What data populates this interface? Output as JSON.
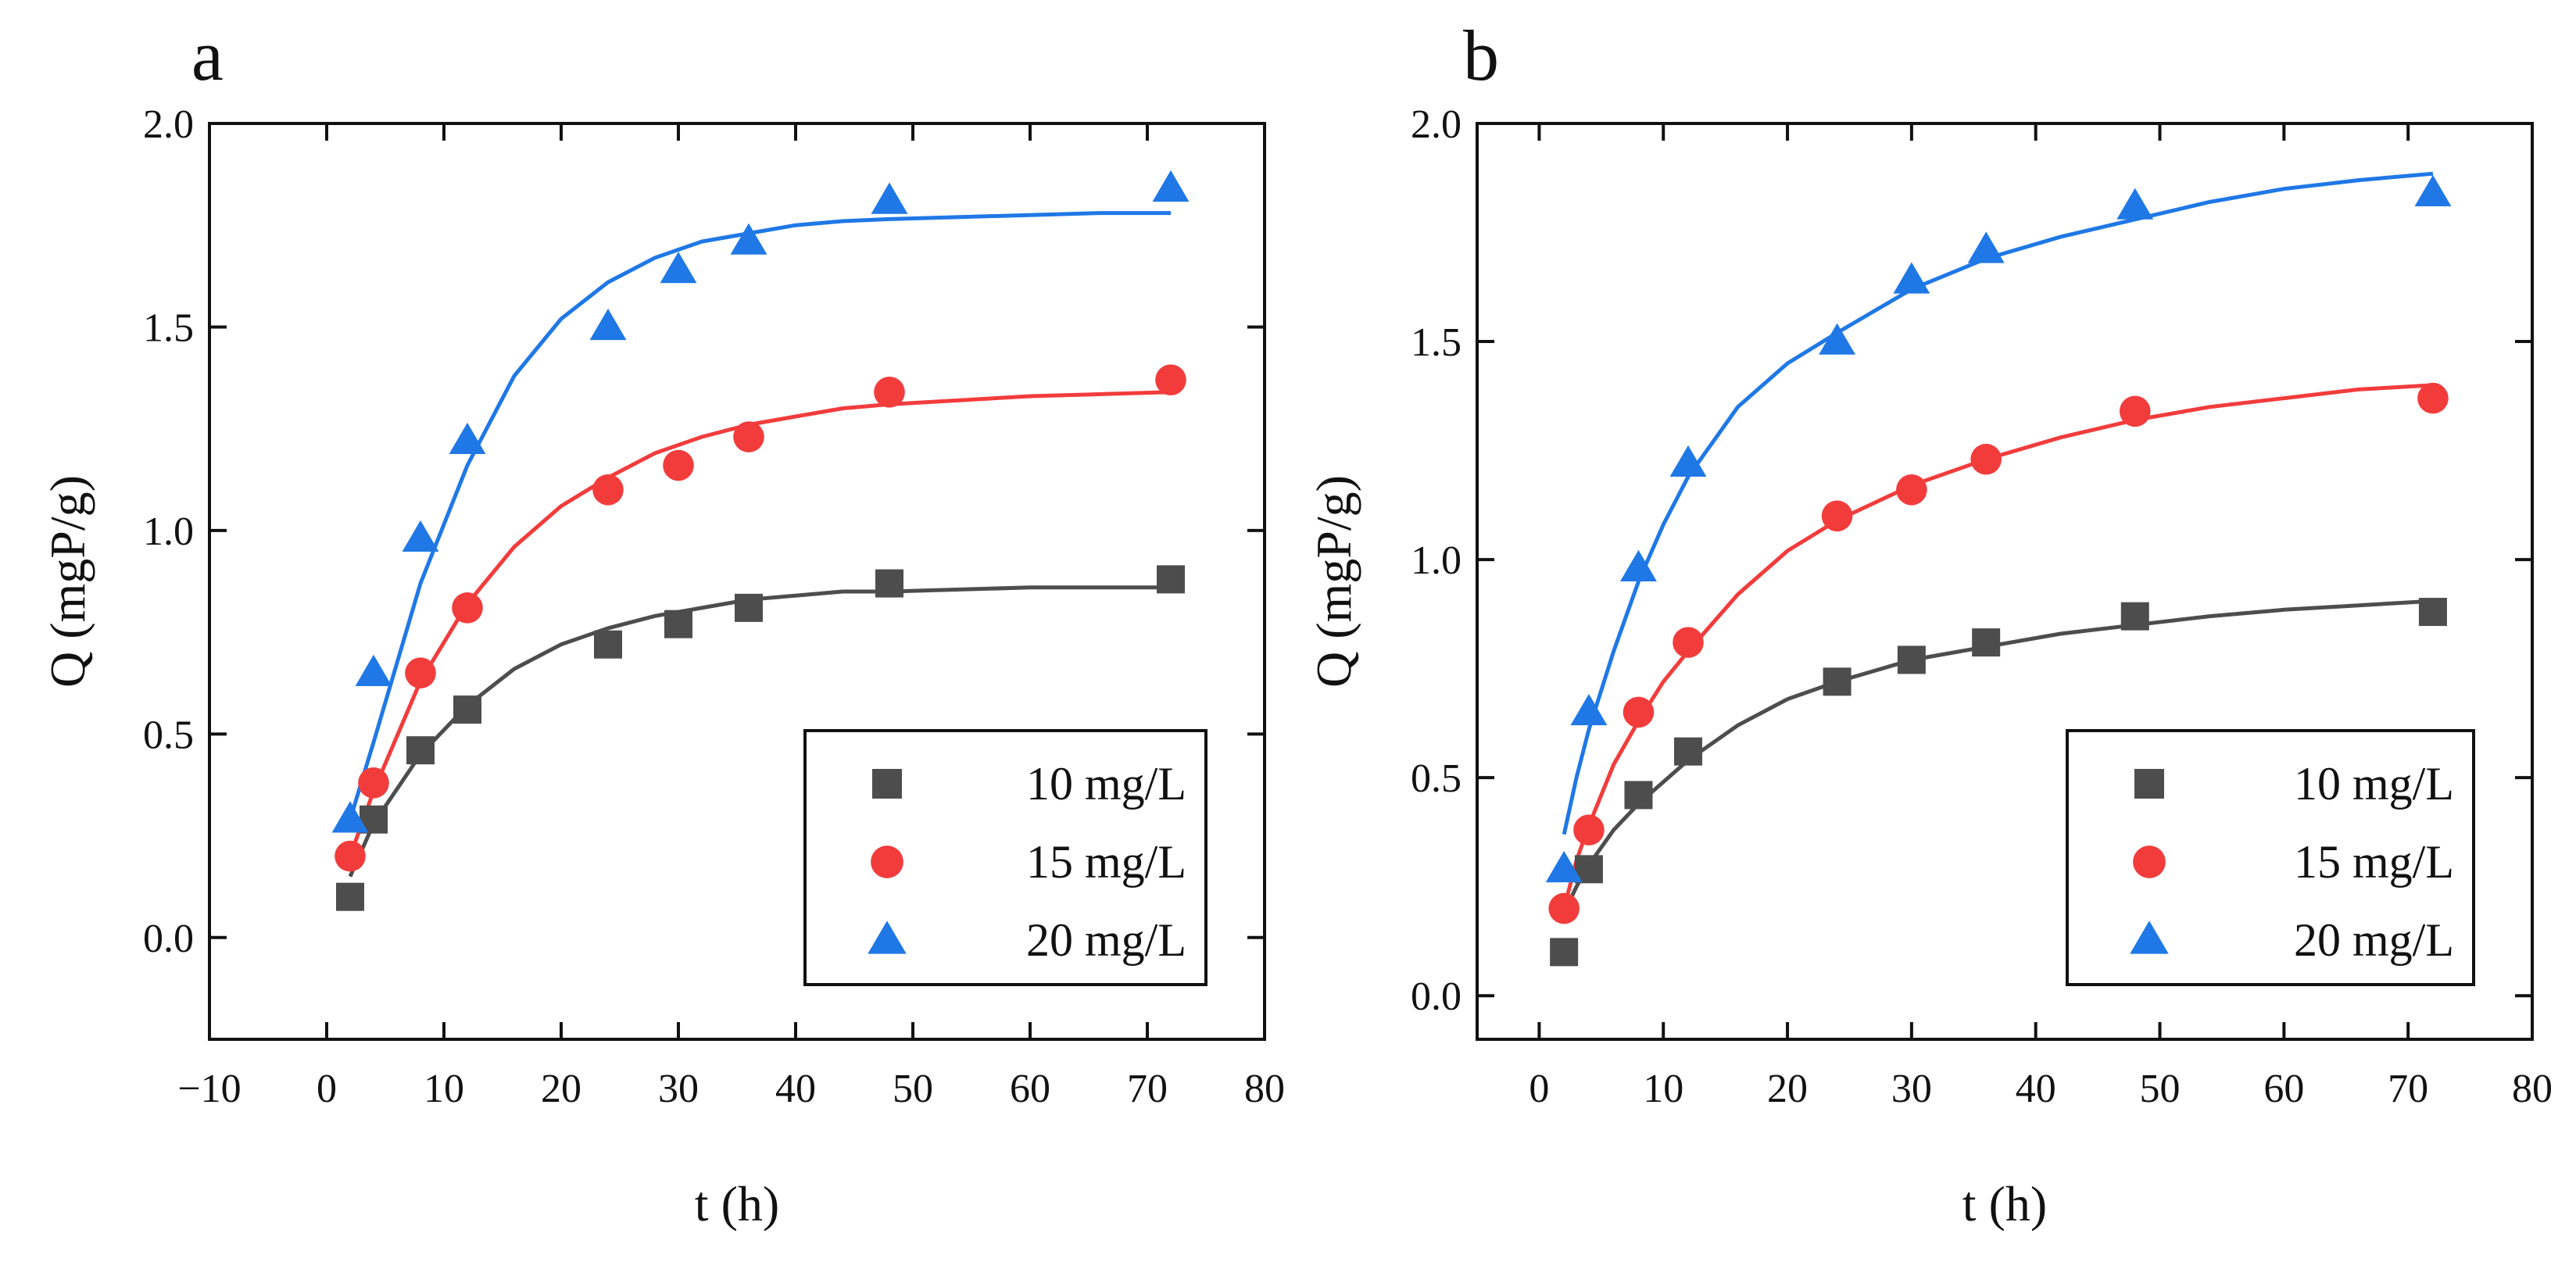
{
  "chart_data": [
    {
      "panel": "a",
      "type": "scatter",
      "xlabel": "t (h)",
      "ylabel": "Q (mgP/g)",
      "xlim": [
        -10,
        80
      ],
      "ylim": [
        -0.25,
        2.0
      ],
      "xticks": [
        -10,
        0,
        10,
        20,
        30,
        40,
        50,
        60,
        70,
        80
      ],
      "xtick_labels": [
        "−10",
        "0",
        "10",
        "20",
        "30",
        "40",
        "50",
        "60",
        "70",
        "80"
      ],
      "yticks": [
        0.0,
        0.5,
        1.0,
        1.5,
        2.0
      ],
      "ytick_labels": [
        "0.0",
        "0.5",
        "1.0",
        "1.5",
        "2.0"
      ],
      "legend_position": "bottom-right",
      "series": [
        {
          "name": "10 mg/L",
          "marker": "square",
          "color": "#4d4d4d",
          "x": [
            2,
            4,
            8,
            12,
            24,
            30,
            36,
            48,
            72
          ],
          "values": [
            0.1,
            0.29,
            0.46,
            0.56,
            0.72,
            0.77,
            0.81,
            0.87,
            0.88
          ],
          "fit": {
            "x": [
              2,
              4,
              8,
              12,
              16,
              20,
              24,
              28,
              32,
              36,
              40,
              44,
              48,
              54,
              60,
              66,
              72
            ],
            "y": [
              0.15,
              0.28,
              0.45,
              0.57,
              0.66,
              0.72,
              0.76,
              0.79,
              0.81,
              0.83,
              0.84,
              0.85,
              0.85,
              0.855,
              0.86,
              0.86,
              0.86
            ]
          }
        },
        {
          "name": "15 mg/L",
          "marker": "circle",
          "color": "#f23c3c",
          "x": [
            2,
            4,
            8,
            12,
            24,
            30,
            36,
            48,
            72
          ],
          "values": [
            0.2,
            0.38,
            0.65,
            0.81,
            1.1,
            1.16,
            1.23,
            1.34,
            1.37
          ],
          "fit": {
            "x": [
              2,
              4,
              8,
              12,
              16,
              20,
              24,
              28,
              32,
              36,
              40,
              44,
              48,
              54,
              60,
              66,
              72
            ],
            "y": [
              0.2,
              0.36,
              0.63,
              0.82,
              0.96,
              1.06,
              1.13,
              1.19,
              1.23,
              1.26,
              1.28,
              1.3,
              1.31,
              1.32,
              1.33,
              1.335,
              1.34
            ]
          }
        },
        {
          "name": "20 mg/L",
          "marker": "triangle",
          "color": "#1f78e6",
          "x": [
            2,
            4,
            8,
            12,
            24,
            30,
            36,
            48,
            72
          ],
          "values": [
            0.29,
            0.65,
            0.98,
            1.22,
            1.5,
            1.64,
            1.71,
            1.81,
            1.84
          ],
          "fit": {
            "x": [
              2,
              4,
              8,
              12,
              16,
              20,
              24,
              28,
              32,
              36,
              40,
              44,
              48,
              54,
              60,
              66,
              72
            ],
            "y": [
              0.29,
              0.48,
              0.87,
              1.16,
              1.38,
              1.52,
              1.61,
              1.67,
              1.71,
              1.73,
              1.75,
              1.76,
              1.765,
              1.77,
              1.775,
              1.78,
              1.78
            ]
          }
        }
      ]
    },
    {
      "panel": "b",
      "type": "scatter",
      "xlabel": "t (h)",
      "ylabel": "Q (mgP/g)",
      "xlim": [
        -5,
        80
      ],
      "ylim": [
        -0.1,
        2.0
      ],
      "xticks": [
        0,
        10,
        20,
        30,
        40,
        50,
        60,
        70,
        80
      ],
      "xtick_labels": [
        "0",
        "10",
        "20",
        "30",
        "40",
        "50",
        "60",
        "70",
        "80"
      ],
      "yticks": [
        0.0,
        0.5,
        1.0,
        1.5,
        2.0
      ],
      "ytick_labels": [
        "0.0",
        "0.5",
        "1.0",
        "1.5",
        "2.0"
      ],
      "legend_position": "bottom-right",
      "series": [
        {
          "name": "10 mg/L",
          "marker": "square",
          "color": "#4d4d4d",
          "x": [
            2,
            4,
            8,
            12,
            24,
            30,
            36,
            48,
            72
          ],
          "values": [
            0.1,
            0.29,
            0.46,
            0.56,
            0.72,
            0.77,
            0.81,
            0.87,
            0.88
          ],
          "fit": {
            "x": [
              2,
              3,
              4,
              6,
              8,
              10,
              12,
              16,
              20,
              24,
              30,
              36,
              42,
              48,
              54,
              60,
              66,
              72
            ],
            "y": [
              0.19,
              0.25,
              0.3,
              0.38,
              0.44,
              0.49,
              0.54,
              0.62,
              0.68,
              0.72,
              0.77,
              0.8,
              0.83,
              0.85,
              0.87,
              0.885,
              0.895,
              0.905
            ]
          }
        },
        {
          "name": "15 mg/L",
          "marker": "circle",
          "color": "#f23c3c",
          "x": [
            2,
            4,
            8,
            12,
            24,
            30,
            36,
            48,
            72
          ],
          "values": [
            0.2,
            0.38,
            0.65,
            0.81,
            1.1,
            1.16,
            1.23,
            1.34,
            1.37
          ],
          "fit": {
            "x": [
              2,
              3,
              4,
              6,
              8,
              10,
              12,
              16,
              20,
              24,
              30,
              36,
              42,
              48,
              54,
              60,
              66,
              72
            ],
            "y": [
              0.2,
              0.31,
              0.39,
              0.53,
              0.63,
              0.72,
              0.79,
              0.92,
              1.02,
              1.09,
              1.17,
              1.23,
              1.28,
              1.32,
              1.35,
              1.37,
              1.39,
              1.4
            ]
          }
        },
        {
          "name": "20 mg/L",
          "marker": "triangle",
          "color": "#1f78e6",
          "x": [
            2,
            4,
            8,
            12,
            24,
            30,
            36,
            48,
            72
          ],
          "values": [
            0.29,
            0.65,
            0.98,
            1.22,
            1.5,
            1.64,
            1.71,
            1.81,
            1.84
          ],
          "fit": {
            "x": [
              2,
              3,
              4,
              6,
              8,
              10,
              12,
              16,
              20,
              24,
              30,
              36,
              42,
              48,
              54,
              60,
              66,
              72
            ],
            "y": [
              0.37,
              0.5,
              0.61,
              0.79,
              0.95,
              1.08,
              1.19,
              1.35,
              1.45,
              1.52,
              1.62,
              1.69,
              1.74,
              1.78,
              1.82,
              1.85,
              1.87,
              1.885
            ]
          }
        }
      ]
    }
  ]
}
